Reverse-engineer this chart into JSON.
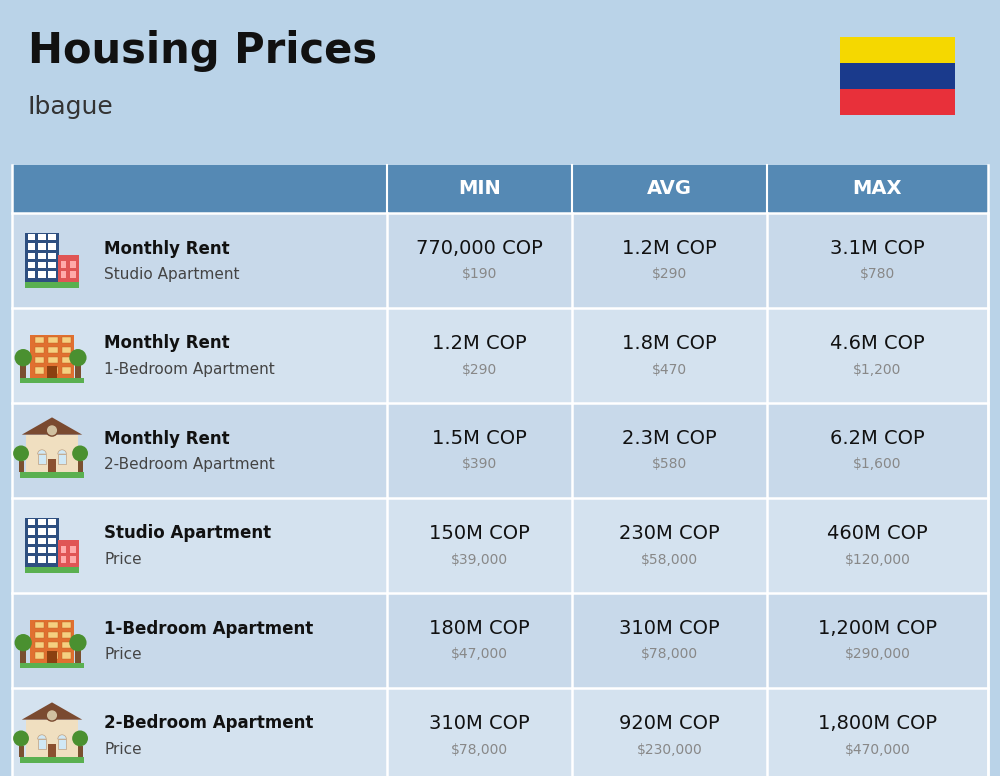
{
  "title": "Housing Prices",
  "subtitle": "Ibague",
  "background_color": "#bad3e8",
  "header_bg_color": "#5589b4",
  "row_bg_odd": "#c8d9ea",
  "row_bg_even": "#d4e2ef",
  "separator_color": "#ffffff",
  "columns": [
    "MIN",
    "AVG",
    "MAX"
  ],
  "rows": [
    {
      "icon_type": "studio_blue",
      "label_bold": "Monthly Rent",
      "label_sub": "Studio Apartment",
      "min_cop": "770,000 COP",
      "min_usd": "$190",
      "avg_cop": "1.2M COP",
      "avg_usd": "$290",
      "max_cop": "3.1M COP",
      "max_usd": "$780"
    },
    {
      "icon_type": "apartment_orange",
      "label_bold": "Monthly Rent",
      "label_sub": "1-Bedroom Apartment",
      "min_cop": "1.2M COP",
      "min_usd": "$290",
      "avg_cop": "1.8M COP",
      "avg_usd": "$470",
      "max_cop": "4.6M COP",
      "max_usd": "$1,200"
    },
    {
      "icon_type": "house_tan",
      "label_bold": "Monthly Rent",
      "label_sub": "2-Bedroom Apartment",
      "min_cop": "1.5M COP",
      "min_usd": "$390",
      "avg_cop": "2.3M COP",
      "avg_usd": "$580",
      "max_cop": "6.2M COP",
      "max_usd": "$1,600"
    },
    {
      "icon_type": "studio_blue",
      "label_bold": "Studio Apartment",
      "label_sub": "Price",
      "min_cop": "150M COP",
      "min_usd": "$39,000",
      "avg_cop": "230M COP",
      "avg_usd": "$58,000",
      "max_cop": "460M COP",
      "max_usd": "$120,000"
    },
    {
      "icon_type": "apartment_orange",
      "label_bold": "1-Bedroom Apartment",
      "label_sub": "Price",
      "min_cop": "180M COP",
      "min_usd": "$47,000",
      "avg_cop": "310M COP",
      "avg_usd": "$78,000",
      "max_cop": "1,200M COP",
      "max_usd": "$290,000"
    },
    {
      "icon_type": "house_tan",
      "label_bold": "2-Bedroom Apartment",
      "label_sub": "Price",
      "min_cop": "310M COP",
      "min_usd": "$78,000",
      "avg_cop": "920M COP",
      "avg_usd": "$230,000",
      "max_cop": "1,800M COP",
      "max_usd": "$470,000"
    }
  ],
  "flag_colors": [
    "#f5d800",
    "#1a3a8c",
    "#e8303a"
  ],
  "title_fontsize": 30,
  "subtitle_fontsize": 18,
  "header_fontsize": 14,
  "cop_fontsize": 14,
  "usd_fontsize": 10,
  "label_bold_fontsize": 12,
  "label_sub_fontsize": 11
}
